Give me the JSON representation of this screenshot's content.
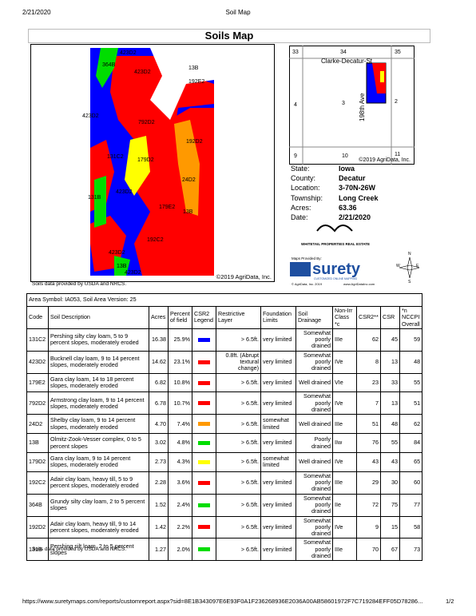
{
  "header": {
    "date": "2/21/2020",
    "page_title": "Soil Map"
  },
  "title": "Soils Map",
  "map": {
    "labels": [
      "364B",
      "423D2",
      "13B",
      "192E2",
      "423D2",
      "423D2",
      "792D2",
      "131C2",
      "179D2",
      "192D2",
      "24D2",
      "131B",
      "423D2",
      "179E2",
      "13B",
      "192C2",
      "423D2",
      "13B",
      "423D2"
    ],
    "credit": "©2019 AgriData, Inc.",
    "source": "Soils data provided by USDA and NRCS."
  },
  "locator": {
    "sections": [
      "33",
      "34",
      "35",
      "4",
      "3",
      "2",
      "9",
      "10",
      "11"
    ],
    "road_1": "Clarke-Decatur-St",
    "road_2": "198th Ave",
    "credit": "©2019 AgriData, Inc."
  },
  "info": [
    {
      "label": "State:",
      "value": "Iowa"
    },
    {
      "label": "County:",
      "value": "Decatur"
    },
    {
      "label": "Location:",
      "value": "3-70N-26W"
    },
    {
      "label": "Township:",
      "value": "Long Creek"
    },
    {
      "label": "Acres:",
      "value": "63.36"
    },
    {
      "label": "Date:",
      "value": "2/21/2020"
    }
  ],
  "logos": {
    "whitetail": "WHITETAIL PROPERTIES REAL ESTATE",
    "provided_by": "Maps Provided By:",
    "surety": "surety",
    "surety_tag": "CUSTOMIZED ONLINE MAPPING",
    "copyright": "© AgriData, Inc. 2019",
    "website": "www.AgriDataInc.com",
    "compass": [
      "N",
      "S",
      "E",
      "W"
    ]
  },
  "table": {
    "caption": "Area Symbol: IA053, Soil Area Version: 25",
    "headers": [
      "Code",
      "Soil Description",
      "Acres",
      "Percent of field",
      "CSR2 Legend",
      "Restrictive Layer",
      "Foundation Limits",
      "Soil Drainage",
      "Non-Irr Class *c",
      "CSR2**",
      "CSR",
      "*n NCCPI Overall"
    ],
    "rows": [
      {
        "code": "131C2",
        "description": "Pershing silty clay loam, 5 to 9 percent slopes, moderately eroded",
        "acres": "16.38",
        "percent": "25.9%",
        "color": "#0000ff",
        "restrictive": "> 6.5ft.",
        "foundation": "very limited",
        "drainage": "Somewhat poorly drained",
        "class": "IIIe",
        "csr2": "62",
        "csr": "45",
        "nccpi": "59"
      },
      {
        "code": "423D2",
        "description": "Bucknell clay loam, 9 to 14 percent slopes, moderately eroded",
        "acres": "14.62",
        "percent": "23.1%",
        "color": "#ff0000",
        "restrictive": "0.8ft. (Abrupt textural change)",
        "foundation": "very limited",
        "drainage": "Somewhat poorly drained",
        "class": "IVe",
        "csr2": "8",
        "csr": "13",
        "nccpi": "48"
      },
      {
        "code": "179E2",
        "description": "Gara clay loam, 14 to 18 percent slopes, moderately eroded",
        "acres": "6.82",
        "percent": "10.8%",
        "color": "#ff0000",
        "restrictive": "> 6.5ft.",
        "foundation": "very limited",
        "drainage": "Well drained",
        "class": "VIe",
        "csr2": "23",
        "csr": "33",
        "nccpi": "55"
      },
      {
        "code": "792D2",
        "description": "Armstrong clay loam, 9 to 14 percent slopes, moderately eroded",
        "acres": "6.78",
        "percent": "10.7%",
        "color": "#ff0000",
        "restrictive": "> 6.5ft.",
        "foundation": "very limited",
        "drainage": "Somewhat poorly drained",
        "class": "IVe",
        "csr2": "7",
        "csr": "13",
        "nccpi": "51"
      },
      {
        "code": "24D2",
        "description": "Shelby clay loam, 9 to 14 percent slopes, moderately eroded",
        "acres": "4.70",
        "percent": "7.4%",
        "color": "#ff9900",
        "restrictive": "> 6.5ft.",
        "foundation": "somewhat limited",
        "drainage": "Well drained",
        "class": "IIIe",
        "csr2": "51",
        "csr": "48",
        "nccpi": "62"
      },
      {
        "code": "13B",
        "description": "Olmitz-Zook-Vesser complex, 0 to 5 percent slopes",
        "acres": "3.02",
        "percent": "4.8%",
        "color": "#00dd00",
        "restrictive": "> 6.5ft.",
        "foundation": "very limited",
        "drainage": "Poorly drained",
        "class": "IIw",
        "csr2": "76",
        "csr": "55",
        "nccpi": "84"
      },
      {
        "code": "179D2",
        "description": "Gara clay loam, 9 to 14 percent slopes, moderately eroded",
        "acres": "2.73",
        "percent": "4.3%",
        "color": "#ffff00",
        "restrictive": "> 6.5ft.",
        "foundation": "somewhat limited",
        "drainage": "Well drained",
        "class": "IVe",
        "csr2": "43",
        "csr": "43",
        "nccpi": "65"
      },
      {
        "code": "192C2",
        "description": "Adair clay loam, heavy till, 5 to 9 percent slopes, moderately eroded",
        "acres": "2.28",
        "percent": "3.6%",
        "color": "#ff0000",
        "restrictive": "> 6.5ft.",
        "foundation": "very limited",
        "drainage": "Somewhat poorly drained",
        "class": "IIIe",
        "csr2": "29",
        "csr": "30",
        "nccpi": "60"
      },
      {
        "code": "364B",
        "description": "Grundy silty clay loam, 2 to 5 percent slopes",
        "acres": "1.52",
        "percent": "2.4%",
        "color": "#00dd00",
        "restrictive": "> 6.5ft.",
        "foundation": "very limited",
        "drainage": "Somewhat poorly drained",
        "class": "IIe",
        "csr2": "72",
        "csr": "75",
        "nccpi": "77"
      },
      {
        "code": "192D2",
        "description": "Adair clay loam, heavy till, 9 to 14 percent slopes, moderately eroded",
        "acres": "1.42",
        "percent": "2.2%",
        "color": "#ff0000",
        "restrictive": "> 6.5ft.",
        "foundation": "very limited",
        "drainage": "Somewhat poorly drained",
        "class": "IVe",
        "csr2": "9",
        "csr": "15",
        "nccpi": "58"
      },
      {
        "code": "131B",
        "description": "Pershing silt loam, 2 to 5 percent slopes",
        "acres": "1.27",
        "percent": "2.0%",
        "color": "#00dd00",
        "restrictive": "> 6.5ft.",
        "foundation": "very limited",
        "drainage": "Somewhat poorly drained",
        "class": "IIIe",
        "csr2": "70",
        "csr": "67",
        "nccpi": "73"
      }
    ]
  },
  "note": "Soils data provided by USDA and NRCS.",
  "footer": {
    "url": "https://www.suretymaps.com/reports/customreport.aspx?sid=8E1B343097E6E93F0A1F236268936E2036A00AB58601972F7C719284EFF05D78286...",
    "page": "1/2"
  }
}
